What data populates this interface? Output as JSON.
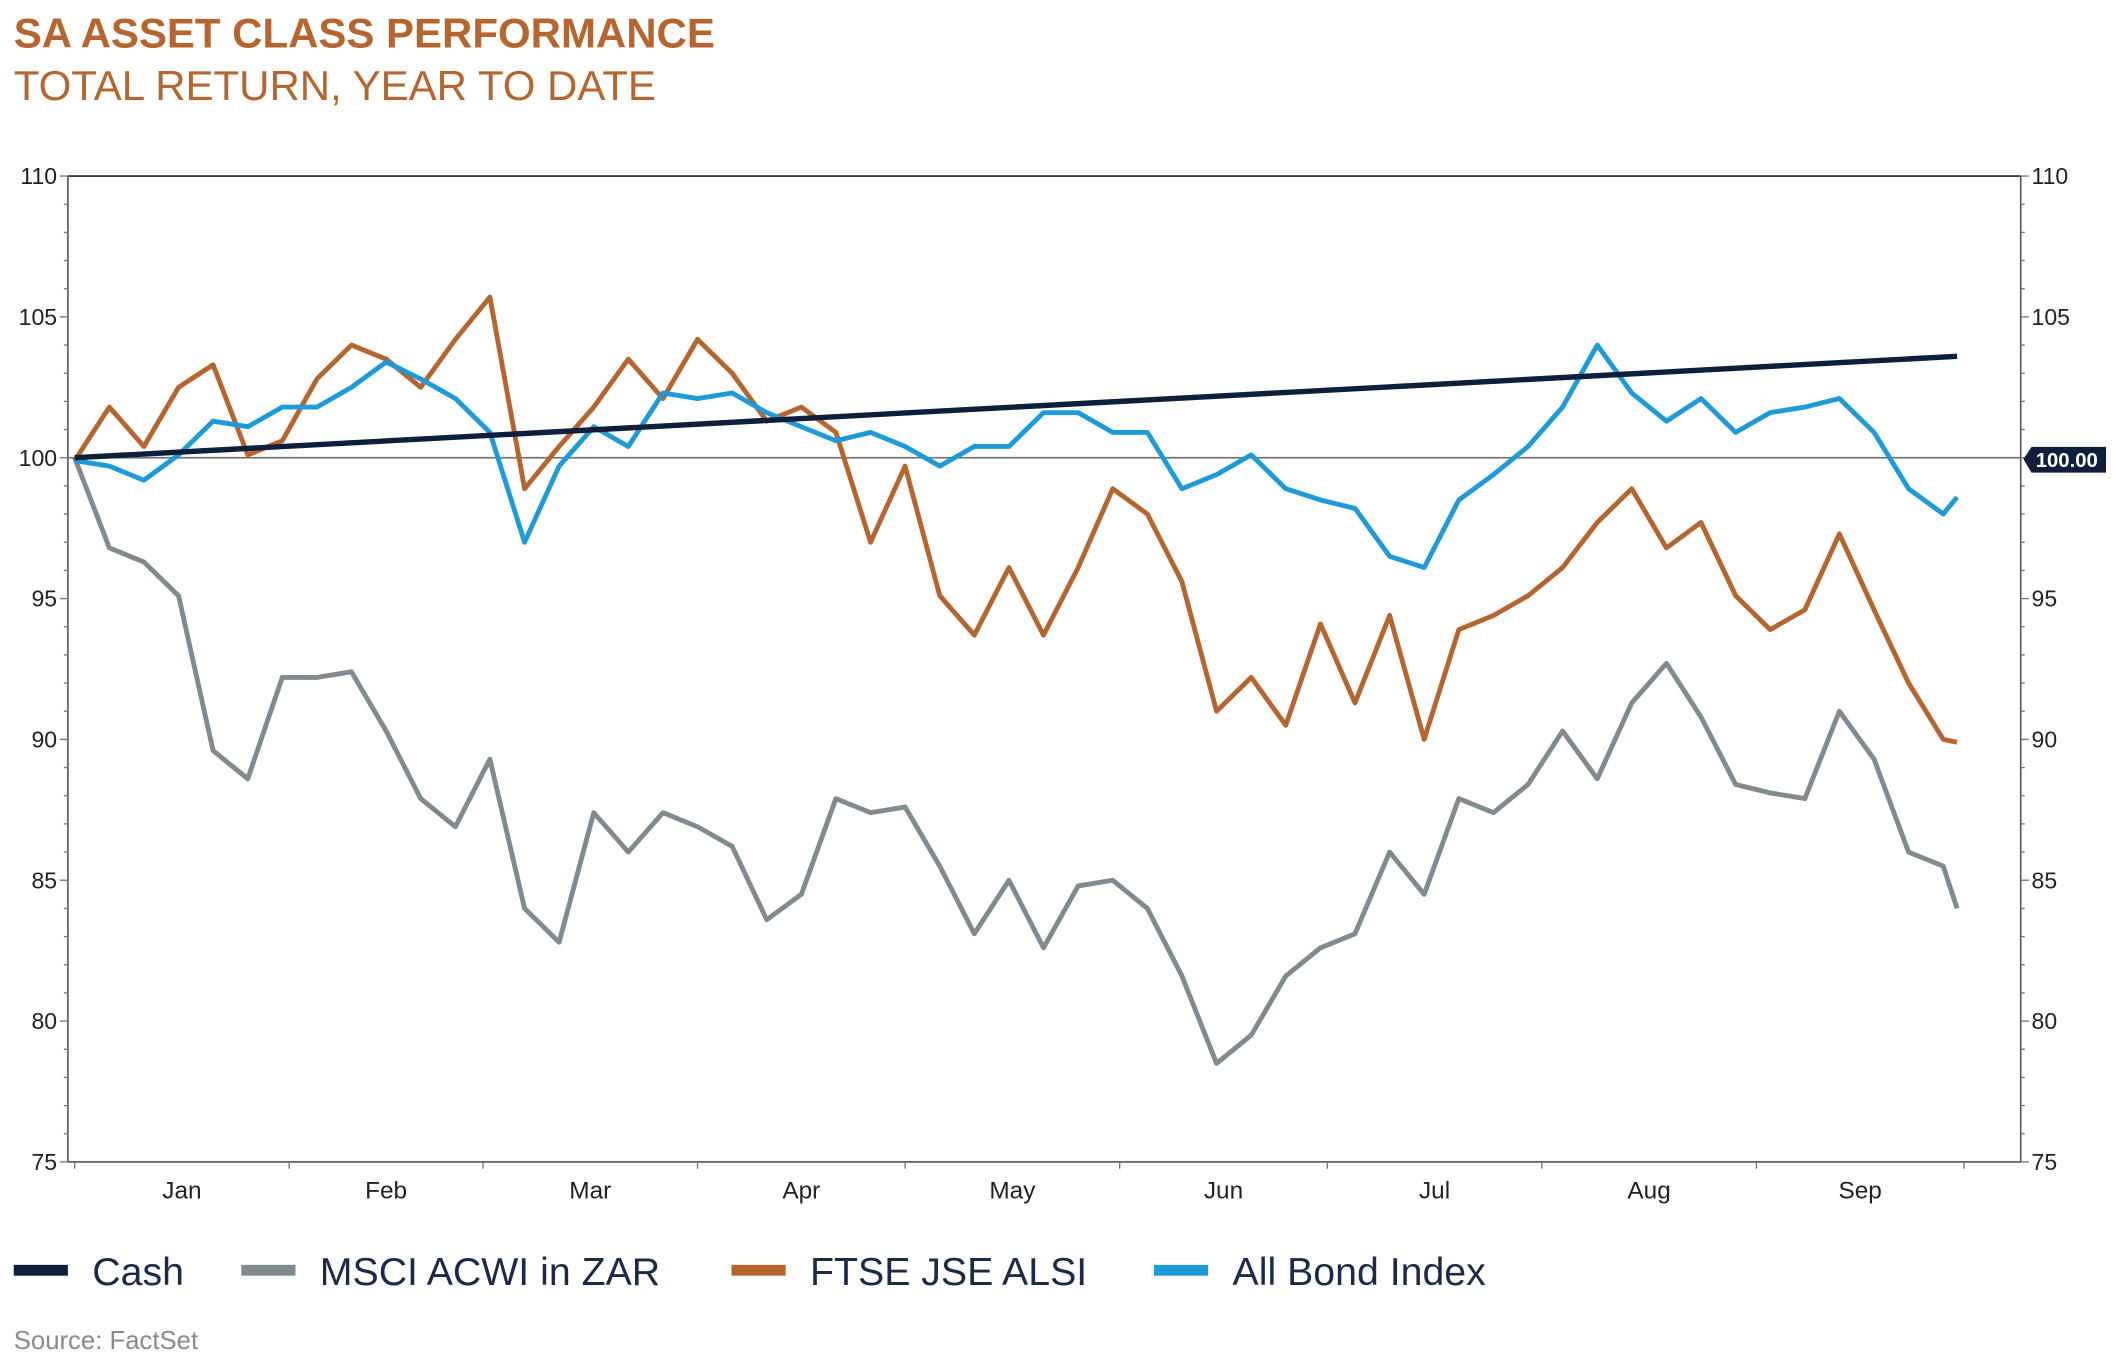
{
  "title": "SA ASSET CLASS PERFORMANCE",
  "subtitle": "TOTAL RETURN, YEAR TO DATE",
  "source": "Source: FactSet",
  "colors": {
    "title": "#b5652f",
    "source": "#8a8a8a"
  },
  "chart_data": {
    "type": "line",
    "title": "SA ASSET CLASS PERFORMANCE",
    "subtitle": "TOTAL RETURN, YEAR TO DATE",
    "xlabel": "",
    "ylabel": "",
    "ylim": [
      75,
      110
    ],
    "yticks": [
      "75",
      "80",
      "85",
      "90",
      "95",
      "100",
      "105",
      "110"
    ],
    "months": [
      "Jan",
      "Feb",
      "Mar",
      "Apr",
      "May",
      "Jun",
      "Jul",
      "Aug",
      "Sep"
    ],
    "reference_line": {
      "value": 100,
      "label": "100.00"
    },
    "dual_y_axis": true,
    "grid": false,
    "legend_placement": "bottom",
    "x": [
      "Jan 01",
      "Jan 06",
      "Jan 11",
      "Jan 16",
      "Jan 21",
      "Jan 26",
      "Jan 31",
      "Feb 05",
      "Feb 10",
      "Feb 15",
      "Feb 20",
      "Feb 25",
      "Mar 02",
      "Mar 07",
      "Mar 12",
      "Mar 17",
      "Mar 22",
      "Mar 27",
      "Apr 01",
      "Apr 06",
      "Apr 11",
      "Apr 16",
      "Apr 21",
      "Apr 26",
      "May 01",
      "May 06",
      "May 11",
      "May 16",
      "May 21",
      "May 26",
      "May 31",
      "Jun 05",
      "Jun 10",
      "Jun 15",
      "Jun 20",
      "Jun 25",
      "Jun 30",
      "Jul 05",
      "Jul 10",
      "Jul 15",
      "Jul 20",
      "Jul 25",
      "Jul 30",
      "Aug 04",
      "Aug 09",
      "Aug 14",
      "Aug 19",
      "Aug 24",
      "Aug 29",
      "Sep 03",
      "Sep 08",
      "Sep 13",
      "Sep 18",
      "Sep 23",
      "Sep 28",
      "Sep 30"
    ],
    "series": [
      {
        "name": "Cash",
        "color": "#0f1e3a",
        "x": [
          "Jan 01",
          "Sep 30"
        ],
        "values": [
          100.0,
          103.6
        ]
      },
      {
        "name": "MSCI ACWI in ZAR",
        "color": "#808a8f",
        "values": [
          100.0,
          96.8,
          96.3,
          95.1,
          89.6,
          88.6,
          92.2,
          92.2,
          92.4,
          90.3,
          87.9,
          86.9,
          89.3,
          84.0,
          82.8,
          87.4,
          86.0,
          87.4,
          86.9,
          86.2,
          83.6,
          84.5,
          87.9,
          87.4,
          87.6,
          85.5,
          83.1,
          85.0,
          82.6,
          84.8,
          85.0,
          84.0,
          81.6,
          78.5,
          79.5,
          81.6,
          82.6,
          83.1,
          86.0,
          84.5,
          87.9,
          87.4,
          88.4,
          90.3,
          88.6,
          91.3,
          92.7,
          90.8,
          88.4,
          88.1,
          87.9,
          91.0,
          89.3,
          86.0,
          85.5,
          84.0
        ]
      },
      {
        "name": "FTSE JSE ALSI",
        "color": "#b5652f",
        "values": [
          99.9,
          101.8,
          100.4,
          102.5,
          103.3,
          100.1,
          100.6,
          102.8,
          104.0,
          103.5,
          102.5,
          104.2,
          105.7,
          98.9,
          100.4,
          101.8,
          103.5,
          102.1,
          104.2,
          103.0,
          101.3,
          101.8,
          100.9,
          97.0,
          99.7,
          95.1,
          93.7,
          96.1,
          93.7,
          96.1,
          98.9,
          98.0,
          95.6,
          91.0,
          92.2,
          90.5,
          94.1,
          91.3,
          94.4,
          90.0,
          93.9,
          94.4,
          95.1,
          96.1,
          97.7,
          98.9,
          96.8,
          97.7,
          95.1,
          93.9,
          94.6,
          97.3,
          94.6,
          92.0,
          90.0,
          89.9
        ]
      },
      {
        "name": "All Bond Index",
        "color": "#1e9bd7",
        "values": [
          99.9,
          99.7,
          99.2,
          100.1,
          101.3,
          101.1,
          101.8,
          101.8,
          102.5,
          103.4,
          102.8,
          102.1,
          100.9,
          97.0,
          99.7,
          101.1,
          100.4,
          102.3,
          102.1,
          102.3,
          101.6,
          101.1,
          100.6,
          100.9,
          100.4,
          99.7,
          100.4,
          100.4,
          101.6,
          101.6,
          100.9,
          100.9,
          98.9,
          99.4,
          100.1,
          98.9,
          98.5,
          98.2,
          96.5,
          96.1,
          98.5,
          99.4,
          100.4,
          101.8,
          104.0,
          102.3,
          101.3,
          102.1,
          100.9,
          101.6,
          101.8,
          102.1,
          100.9,
          98.9,
          98.0,
          98.6
        ]
      }
    ]
  }
}
